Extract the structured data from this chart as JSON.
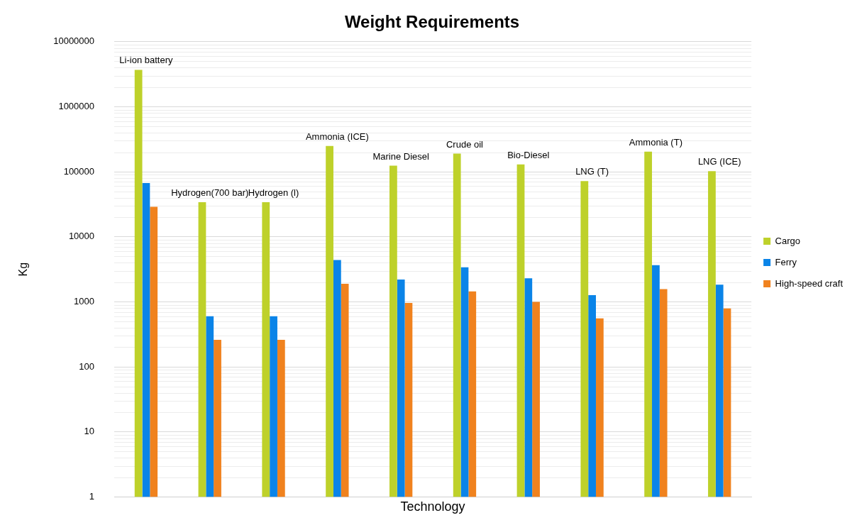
{
  "chart_data": {
    "type": "bar",
    "title": "Weight Requirements",
    "xlabel": "Technology",
    "ylabel": "Kg",
    "categories": [
      "Li-ion battery",
      "Hydrogen(700 bar)",
      "Hydrogen (l)",
      "Ammonia (ICE)",
      "Marine Diesel",
      "Crude oil",
      "Bio-Diesel",
      "LNG (T)",
      "Ammonia (T)",
      "LNG (ICE)"
    ],
    "series": [
      {
        "name": "Cargo",
        "color": "#bed12a",
        "values": [
          3700000,
          34000,
          34000,
          250000,
          124000,
          190000,
          130000,
          72000,
          204000,
          102000
        ]
      },
      {
        "name": "Ferry",
        "color": "#0a84e8",
        "values": [
          67000,
          600,
          600,
          4400,
          2200,
          3400,
          2300,
          1270,
          3660,
          1830
        ]
      },
      {
        "name": "High-speed craft",
        "color": "#f0821e",
        "values": [
          29000,
          260,
          260,
          1900,
          960,
          1450,
          1000,
          555,
          1570,
          790
        ]
      }
    ],
    "log": true,
    "ylim": [
      1,
      10000000
    ],
    "yticks": [
      1,
      10,
      100,
      1000,
      10000,
      100000,
      1000000,
      10000000
    ],
    "grid": "y",
    "legend": "right",
    "tick_labels": "y"
  }
}
